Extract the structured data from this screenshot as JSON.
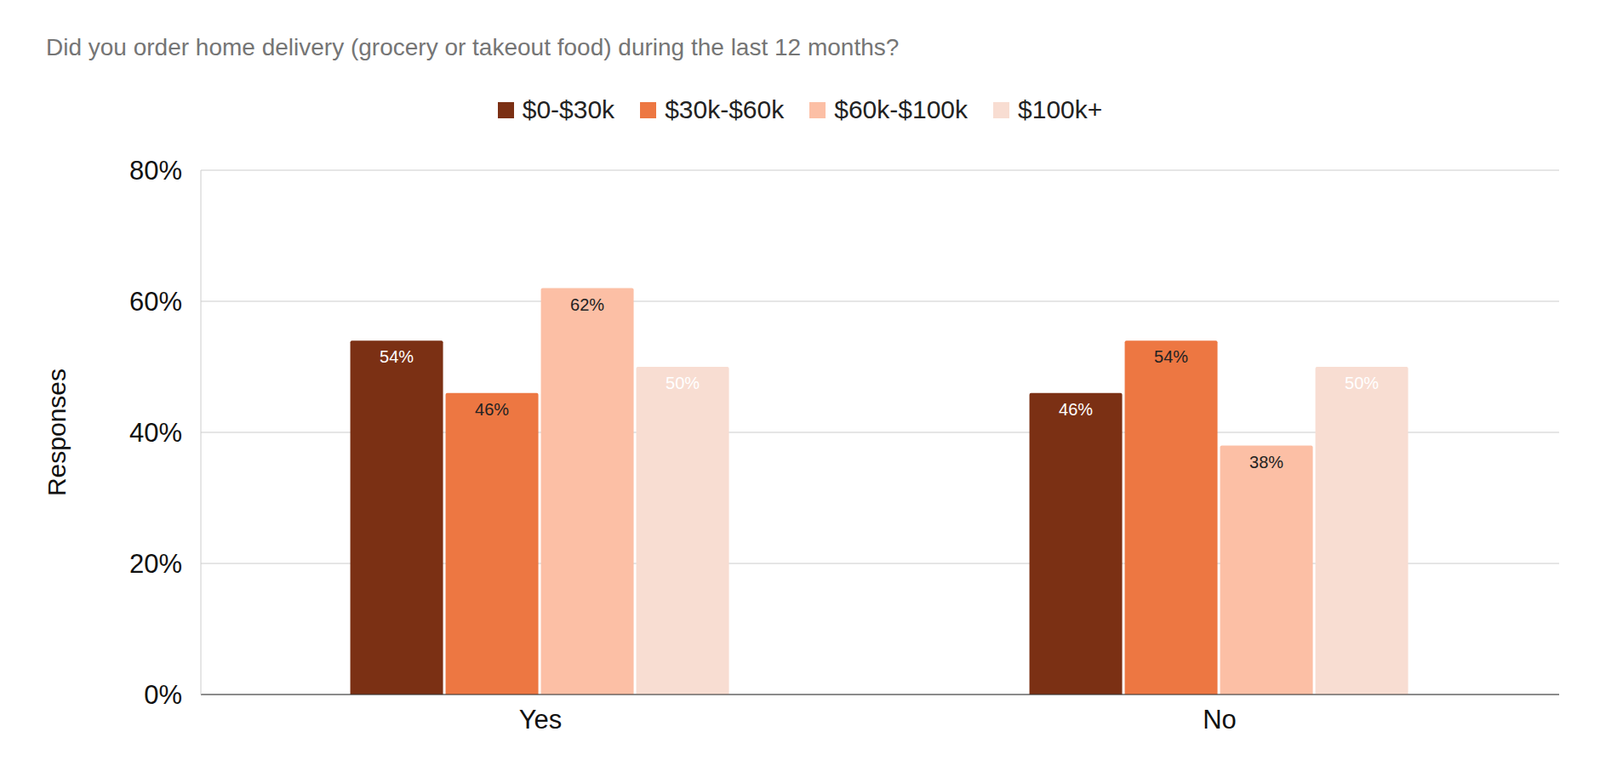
{
  "chart_data": {
    "type": "bar",
    "title": "Did you order home delivery (grocery or takeout food) during the last 12 months?",
    "y_label": "Responses",
    "categories": [
      "Yes",
      "No"
    ],
    "series": [
      {
        "name": "$0-$30k",
        "color": "#7b3014",
        "values": [
          54,
          46
        ],
        "value_labels": [
          "54%",
          "46%"
        ]
      },
      {
        "name": "$30k-$60k",
        "color": "#ed7742",
        "values": [
          46,
          54
        ],
        "value_labels": [
          "46%",
          "54%"
        ]
      },
      {
        "name": "$60k-$100k",
        "color": "#fcbfa5",
        "values": [
          62,
          38
        ],
        "value_labels": [
          "62%",
          "38%"
        ]
      },
      {
        "name": "$100k+",
        "color": "#f8ddd2",
        "values": [
          50,
          50
        ],
        "value_labels": [
          "50%",
          "50%"
        ]
      }
    ],
    "ylim": [
      0,
      80
    ],
    "yticks": [
      {
        "value": 0,
        "label": "0%"
      },
      {
        "value": 20,
        "label": "20%"
      },
      {
        "value": 40,
        "label": "40%"
      },
      {
        "value": 60,
        "label": "60%"
      },
      {
        "value": 80,
        "label": "80%"
      }
    ],
    "grid": true,
    "legend": "top",
    "data_labels": true
  }
}
